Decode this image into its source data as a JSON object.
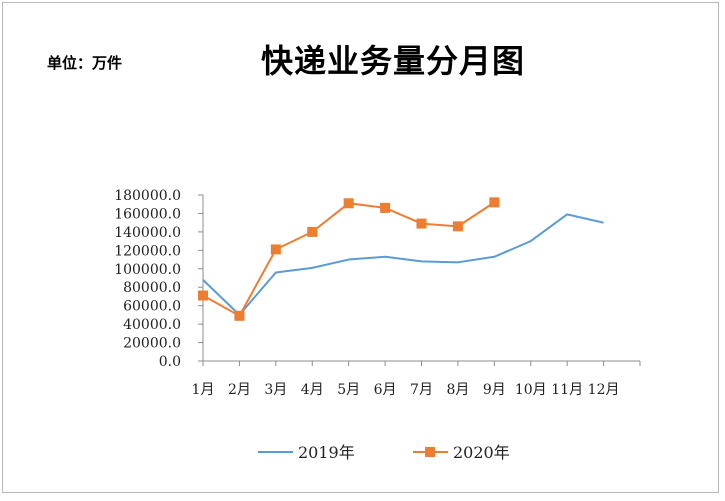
{
  "unit_label": "单位：万件",
  "chart_data": {
    "type": "line",
    "title": "快递业务量分月图",
    "xlabel": "",
    "ylabel": "",
    "categories": [
      "1月",
      "2月",
      "3月",
      "4月",
      "5月",
      "6月",
      "7月",
      "8月",
      "9月",
      "10月",
      "11月",
      "12月"
    ],
    "ylim": [
      0,
      180000
    ],
    "yticks": [
      "0.0",
      "20000.0",
      "40000.0",
      "60000.0",
      "80000.0",
      "100000.0",
      "120000.0",
      "140000.0",
      "160000.0",
      "180000.0"
    ],
    "grid": false,
    "legend_position": "bottom",
    "series": [
      {
        "name": "2019年",
        "color": "#5b9bd5",
        "marker": "none",
        "values": [
          88000,
          50000,
          96000,
          101000,
          110000,
          113000,
          108000,
          107000,
          113000,
          130000,
          159000,
          150000
        ]
      },
      {
        "name": "2020年",
        "color": "#ed7d31",
        "marker": "square",
        "values": [
          71000,
          49000,
          121000,
          140000,
          171000,
          166000,
          149000,
          146000,
          172000,
          null,
          null,
          null
        ]
      }
    ]
  }
}
